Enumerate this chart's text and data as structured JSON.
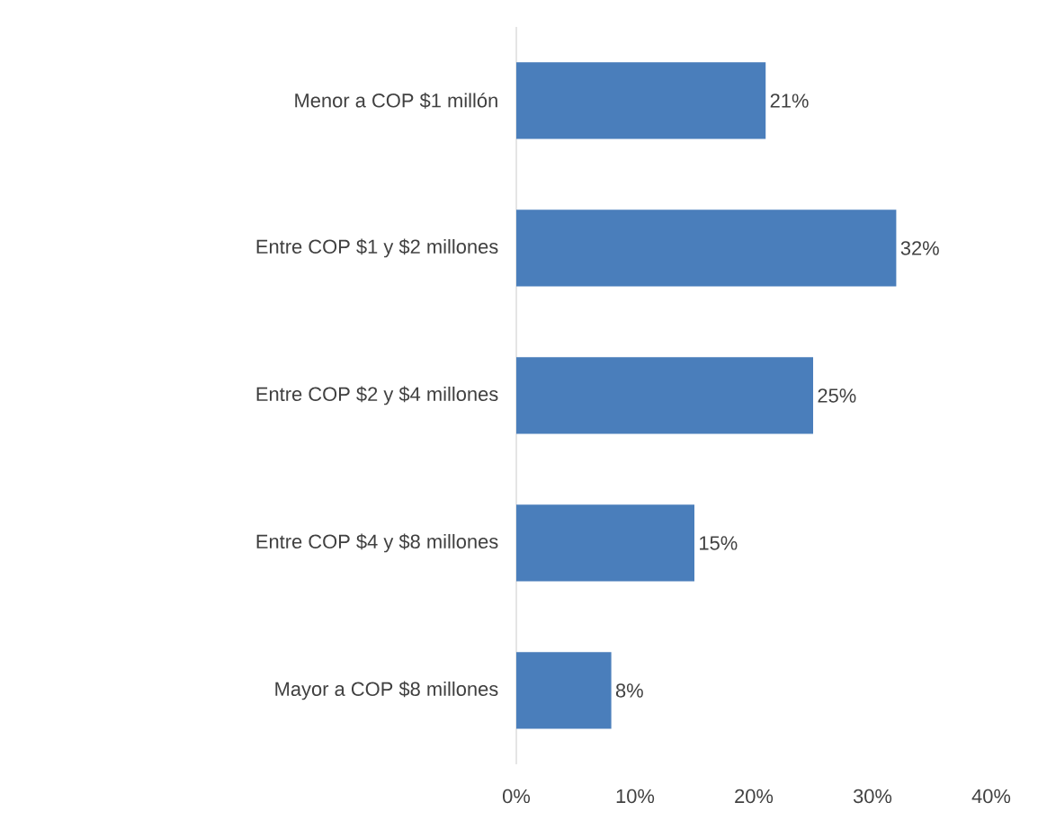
{
  "chart_data": {
    "type": "bar",
    "orientation": "horizontal",
    "categories": [
      "Menor a COP $1 millón",
      "Entre COP $1 y $2 millones",
      "Entre COP $2 y $4 millones",
      "Entre COP $4 y $8 millones",
      "Mayor a COP $8 millones"
    ],
    "values": [
      21,
      32,
      25,
      15,
      8
    ],
    "value_labels": [
      "21%",
      "32%",
      "25%",
      "15%",
      "8%"
    ],
    "color": "#4a7ebb",
    "xlim": [
      0,
      40
    ],
    "xticks": [
      {
        "value": 0,
        "label": "0%"
      },
      {
        "value": 10,
        "label": "10%"
      },
      {
        "value": 20,
        "label": "20%"
      },
      {
        "value": 30,
        "label": "30%"
      },
      {
        "value": 40,
        "label": "40%"
      }
    ],
    "grid": false
  }
}
